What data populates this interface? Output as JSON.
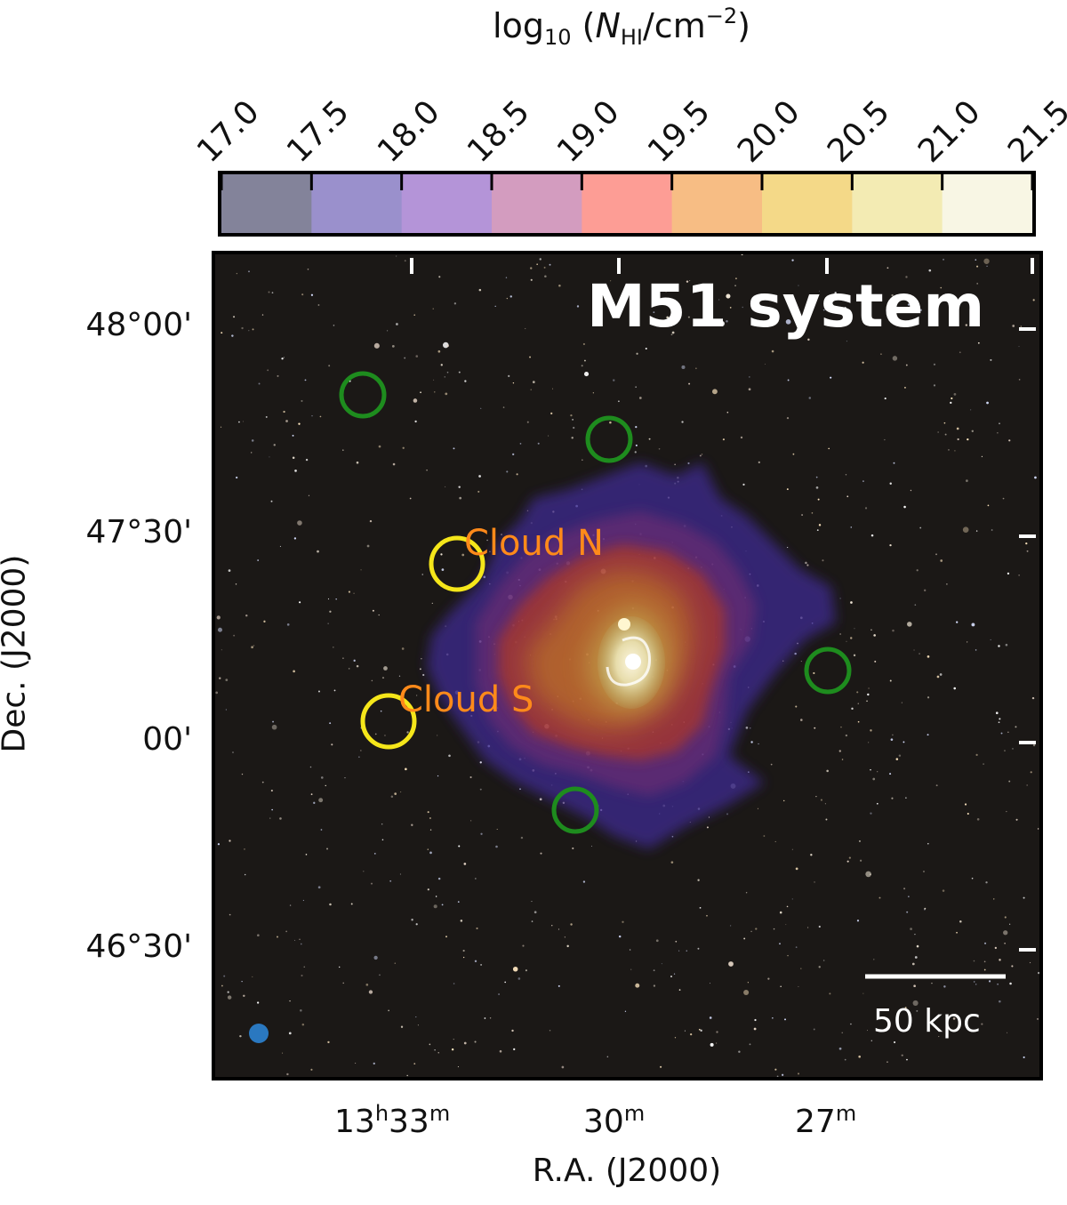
{
  "colorbar": {
    "label_prefix": "log",
    "label_sub": "10",
    "label_open": " (",
    "label_var": "N",
    "label_var_sub": "HI",
    "label_unit": "/cm",
    "label_exp": "−2",
    "label_close": ")",
    "ticks": [
      "17.0",
      "17.5",
      "18.0",
      "18.5",
      "19.0",
      "19.5",
      "20.0",
      "20.5",
      "21.0",
      "21.5"
    ],
    "colors": [
      "#83839a",
      "#9a90cc",
      "#b494d8",
      "#d39cbf",
      "#fd9d95",
      "#f7bd84",
      "#f4d988",
      "#f3ebb3",
      "#f8f6e4"
    ]
  },
  "map": {
    "title": "M51 system",
    "clouds": [
      {
        "name": "Cloud N"
      },
      {
        "name": "Cloud S"
      }
    ],
    "scale_bar": "50 kpc",
    "circle_colors": {
      "yellow": "#f5e61a",
      "green": "#1e8c1e"
    },
    "beam_color": "#2a78c0"
  },
  "axes": {
    "xlabel": "R.A. (J2000)",
    "ylabel": "Dec. (J2000)",
    "xticks": [
      {
        "main": "13",
        "h": "h",
        "min": "33",
        "m": "m"
      },
      {
        "main": "",
        "h": "",
        "min": "30",
        "m": "m"
      },
      {
        "main": "",
        "h": "",
        "min": "27",
        "m": "m"
      }
    ],
    "yticks": [
      "48°00'",
      "47°30'",
      "00'",
      "46°30'"
    ]
  }
}
